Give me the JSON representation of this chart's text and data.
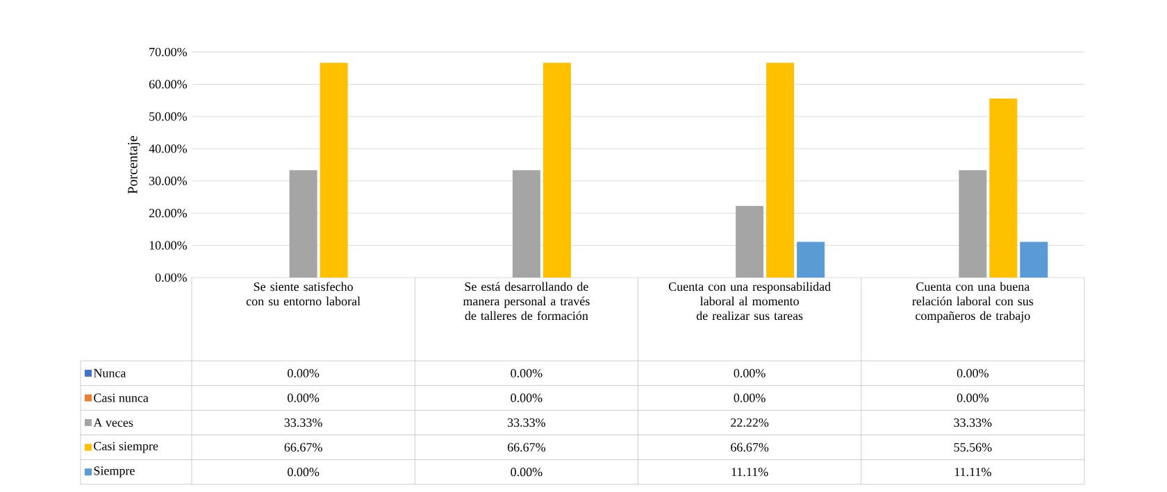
{
  "chart_data": {
    "type": "bar",
    "ylabel": "Porcentaje",
    "categories": [
      "Se siente satisfecho con su entorno laboral",
      "Se está desarrollando de manera personal a través de talleres de formación",
      "Cuenta con una responsabilidad laboral al momento de realizar sus tareas",
      "Cuenta con una buena relación laboral con sus compañeros de trabajo"
    ],
    "series": [
      {
        "name": "Nunca",
        "color": "#4472c4",
        "values": [
          0,
          0,
          0,
          0
        ],
        "value_labels": [
          "0.00%",
          "0.00%",
          "0.00%",
          "0.00%"
        ]
      },
      {
        "name": "Casi nunca",
        "color": "#ed7d31",
        "values": [
          0,
          0,
          0,
          0
        ],
        "value_labels": [
          "0.00%",
          "0.00%",
          "0.00%",
          "0.00%"
        ]
      },
      {
        "name": "A veces",
        "color": "#a5a5a5",
        "values": [
          33.33,
          33.33,
          22.22,
          33.33
        ],
        "value_labels": [
          "33.33%",
          "33.33%",
          "22.22%",
          "33.33%"
        ]
      },
      {
        "name": "Casi siempre",
        "color": "#ffc000",
        "values": [
          66.67,
          66.67,
          66.67,
          55.56
        ],
        "value_labels": [
          "66.67%",
          "66.67%",
          "66.67%",
          "55.56%"
        ]
      },
      {
        "name": "Siempre",
        "color": "#5b9bd5",
        "values": [
          0,
          0,
          11.11,
          11.11
        ],
        "value_labels": [
          "0.00%",
          "0.00%",
          "11.11%",
          "11.11%"
        ]
      }
    ],
    "ylim": [
      0,
      70
    ],
    "yticks": [
      {
        "value": 0,
        "label": "0.00%"
      },
      {
        "value": 10,
        "label": "10.00%"
      },
      {
        "value": 20,
        "label": "20.00%"
      },
      {
        "value": 30,
        "label": "30.00%"
      },
      {
        "value": 40,
        "label": "40.00%"
      },
      {
        "value": 50,
        "label": "50.00%"
      },
      {
        "value": 60,
        "label": "60.00%"
      },
      {
        "value": 70,
        "label": "70.00%"
      }
    ],
    "grid": "y",
    "legend": "bottom"
  }
}
